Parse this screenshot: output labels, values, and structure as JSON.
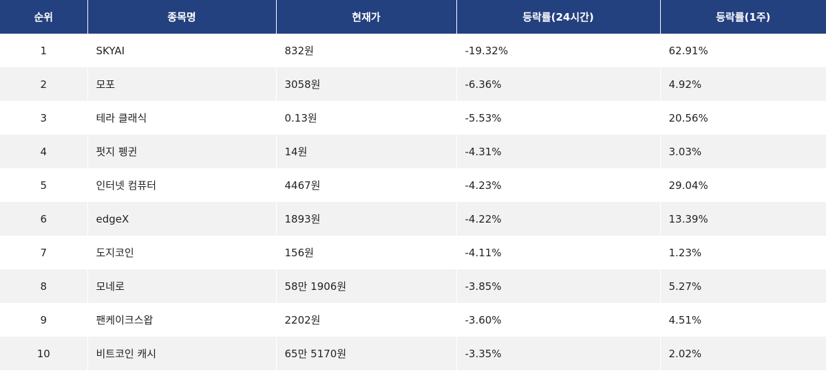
{
  "table": {
    "headers": [
      "순위",
      "종목명",
      "현재가",
      "등락률(24시간)",
      "등락률(1주)"
    ],
    "rows": [
      {
        "rank": "1",
        "name": "SKYAI",
        "price": "832원",
        "change_24h": "-19.32%",
        "change_1w": "62.91%"
      },
      {
        "rank": "2",
        "name": "모포",
        "price": "3058원",
        "change_24h": "-6.36%",
        "change_1w": "4.92%"
      },
      {
        "rank": "3",
        "name": "테라 클래식",
        "price": "0.13원",
        "change_24h": "-5.53%",
        "change_1w": "20.56%"
      },
      {
        "rank": "4",
        "name": "펏지 펭귄",
        "price": "14원",
        "change_24h": "-4.31%",
        "change_1w": "3.03%"
      },
      {
        "rank": "5",
        "name": "인터넷 컴퓨터",
        "price": "4467원",
        "change_24h": "-4.23%",
        "change_1w": "29.04%"
      },
      {
        "rank": "6",
        "name": "edgeX",
        "price": "1893원",
        "change_24h": "-4.22%",
        "change_1w": "13.39%"
      },
      {
        "rank": "7",
        "name": "도지코인",
        "price": "156원",
        "change_24h": "-4.11%",
        "change_1w": "1.23%"
      },
      {
        "rank": "8",
        "name": "모네로",
        "price": "58만 1906원",
        "change_24h": "-3.85%",
        "change_1w": "5.27%"
      },
      {
        "rank": "9",
        "name": "팬케이크스왑",
        "price": "2202원",
        "change_24h": "-3.60%",
        "change_1w": "4.51%"
      },
      {
        "rank": "10",
        "name": "비트코인 캐시",
        "price": "65만 5170원",
        "change_24h": "-3.35%",
        "change_1w": "2.02%"
      }
    ]
  }
}
